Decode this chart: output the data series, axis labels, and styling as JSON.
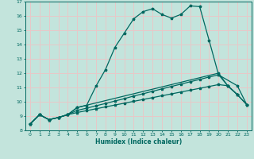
{
  "title": "",
  "xlabel": "Humidex (Indice chaleur)",
  "ylabel": "",
  "xlim": [
    -0.5,
    23.5
  ],
  "ylim": [
    8,
    17
  ],
  "xticks": [
    0,
    1,
    2,
    3,
    4,
    5,
    6,
    7,
    8,
    9,
    10,
    11,
    12,
    13,
    14,
    15,
    16,
    17,
    18,
    19,
    20,
    21,
    22,
    23
  ],
  "yticks": [
    8,
    9,
    10,
    11,
    12,
    13,
    14,
    15,
    16,
    17
  ],
  "bg_color": "#c3e4dc",
  "grid_color": "#e8c8c8",
  "line_color": "#006860",
  "curve1_x": [
    0,
    1,
    2,
    3,
    4,
    5,
    6,
    7,
    8,
    9,
    10,
    11,
    12,
    13,
    14,
    15,
    16,
    17,
    18,
    19,
    20,
    21,
    22
  ],
  "curve1_y": [
    8.45,
    9.1,
    8.75,
    8.9,
    9.1,
    9.6,
    9.75,
    11.1,
    12.25,
    13.8,
    14.8,
    15.8,
    16.3,
    16.5,
    16.1,
    15.85,
    16.1,
    16.7,
    16.65,
    14.3,
    11.9,
    11.1,
    10.5
  ],
  "curve2_x": [
    0,
    1,
    2,
    3,
    4,
    5,
    20,
    21,
    22,
    23
  ],
  "curve2_y": [
    8.45,
    9.1,
    8.75,
    8.9,
    9.1,
    9.6,
    12.0,
    11.1,
    10.5,
    9.8
  ],
  "curve3_x": [
    0,
    1,
    2,
    3,
    4,
    5,
    6,
    7,
    8,
    9,
    10,
    11,
    12,
    13,
    14,
    15,
    16,
    17,
    18,
    19,
    20,
    22,
    23
  ],
  "curve3_y": [
    8.45,
    9.1,
    8.75,
    8.9,
    9.1,
    9.4,
    9.55,
    9.72,
    9.88,
    10.05,
    10.22,
    10.4,
    10.56,
    10.73,
    10.9,
    11.07,
    11.23,
    11.4,
    11.56,
    11.73,
    11.88,
    11.12,
    9.8
  ],
  "curve4_x": [
    0,
    1,
    2,
    3,
    4,
    5,
    6,
    7,
    8,
    9,
    10,
    11,
    12,
    13,
    14,
    15,
    16,
    17,
    18,
    19,
    20,
    21,
    22,
    23
  ],
  "curve4_y": [
    8.45,
    9.1,
    8.75,
    8.9,
    9.1,
    9.25,
    9.38,
    9.51,
    9.64,
    9.77,
    9.9,
    10.03,
    10.16,
    10.29,
    10.42,
    10.55,
    10.68,
    10.81,
    10.94,
    11.07,
    11.2,
    11.12,
    10.5,
    9.8
  ]
}
